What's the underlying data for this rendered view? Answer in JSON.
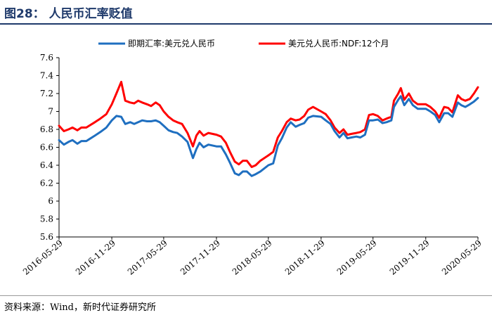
{
  "header": {
    "title": "图28：  人民币汇率贬值"
  },
  "footer": {
    "source": "资料来源：Wind，新时代证券研究所"
  },
  "colors": {
    "title": "#1f3a6b",
    "spot": "#1f6fc0",
    "ndf": "#ff0000"
  },
  "chart_data": {
    "type": "line",
    "title": "",
    "xlabel": "",
    "ylabel": "",
    "ylim": [
      5.6,
      7.6
    ],
    "yticks": [
      5.6,
      5.8,
      6,
      6.2,
      6.4,
      6.6,
      6.8,
      7,
      7.2,
      7.4,
      7.6
    ],
    "ytick_labels": [
      "5.6",
      "5.8",
      "6",
      "6.2",
      "6.4",
      "6.6",
      "6.8",
      "7",
      "7.2",
      "7.4",
      "7.6"
    ],
    "xlim": [
      "2016-05-29",
      "2020-05-29"
    ],
    "xticks": [
      "2016-05-29",
      "2016-11-29",
      "2017-05-29",
      "2017-11-29",
      "2018-05-29",
      "2018-11-29",
      "2019-05-29",
      "2019-11-29",
      "2020-05-29"
    ],
    "legend_position": "top",
    "grid": false,
    "series": [
      {
        "name": "即期汇率:美元兑人民币",
        "color": "#1f6fc0",
        "points": [
          [
            "2016-05-29",
            6.68
          ],
          [
            "2016-06-15",
            6.63
          ],
          [
            "2016-07-01",
            6.66
          ],
          [
            "2016-07-15",
            6.68
          ],
          [
            "2016-08-01",
            6.64
          ],
          [
            "2016-08-15",
            6.67
          ],
          [
            "2016-09-01",
            6.67
          ],
          [
            "2016-10-01",
            6.73
          ],
          [
            "2016-10-20",
            6.77
          ],
          [
            "2016-11-10",
            6.82
          ],
          [
            "2016-11-29",
            6.9
          ],
          [
            "2016-12-15",
            6.95
          ],
          [
            "2017-01-01",
            6.94
          ],
          [
            "2017-01-15",
            6.86
          ],
          [
            "2017-02-01",
            6.88
          ],
          [
            "2017-02-15",
            6.86
          ],
          [
            "2017-03-01",
            6.88
          ],
          [
            "2017-03-15",
            6.9
          ],
          [
            "2017-04-01",
            6.89
          ],
          [
            "2017-04-15",
            6.89
          ],
          [
            "2017-05-01",
            6.9
          ],
          [
            "2017-05-15",
            6.88
          ],
          [
            "2017-05-29",
            6.84
          ],
          [
            "2017-06-15",
            6.79
          ],
          [
            "2017-07-01",
            6.77
          ],
          [
            "2017-07-15",
            6.76
          ],
          [
            "2017-08-01",
            6.72
          ],
          [
            "2017-08-20",
            6.66
          ],
          [
            "2017-09-08",
            6.48
          ],
          [
            "2017-09-20",
            6.58
          ],
          [
            "2017-10-01",
            6.65
          ],
          [
            "2017-10-15",
            6.6
          ],
          [
            "2017-11-01",
            6.63
          ],
          [
            "2017-11-29",
            6.61
          ],
          [
            "2017-12-15",
            6.61
          ],
          [
            "2018-01-01",
            6.52
          ],
          [
            "2018-01-15",
            6.43
          ],
          [
            "2018-02-01",
            6.31
          ],
          [
            "2018-02-15",
            6.29
          ],
          [
            "2018-03-01",
            6.33
          ],
          [
            "2018-03-15",
            6.33
          ],
          [
            "2018-04-01",
            6.28
          ],
          [
            "2018-04-15",
            6.3
          ],
          [
            "2018-05-01",
            6.33
          ],
          [
            "2018-05-29",
            6.4
          ],
          [
            "2018-06-15",
            6.42
          ],
          [
            "2018-07-01",
            6.62
          ],
          [
            "2018-07-15",
            6.7
          ],
          [
            "2018-08-01",
            6.82
          ],
          [
            "2018-08-15",
            6.88
          ],
          [
            "2018-09-01",
            6.83
          ],
          [
            "2018-09-15",
            6.85
          ],
          [
            "2018-10-01",
            6.87
          ],
          [
            "2018-10-15",
            6.93
          ],
          [
            "2018-11-01",
            6.95
          ],
          [
            "2018-11-29",
            6.94
          ],
          [
            "2018-12-15",
            6.9
          ],
          [
            "2019-01-01",
            6.86
          ],
          [
            "2019-01-15",
            6.78
          ],
          [
            "2019-02-01",
            6.71
          ],
          [
            "2019-02-15",
            6.76
          ],
          [
            "2019-03-01",
            6.7
          ],
          [
            "2019-03-15",
            6.71
          ],
          [
            "2019-04-01",
            6.72
          ],
          [
            "2019-04-15",
            6.71
          ],
          [
            "2019-05-01",
            6.74
          ],
          [
            "2019-05-15",
            6.9
          ],
          [
            "2019-05-29",
            6.9
          ],
          [
            "2019-06-15",
            6.91
          ],
          [
            "2019-07-01",
            6.87
          ],
          [
            "2019-07-15",
            6.88
          ],
          [
            "2019-08-01",
            6.9
          ],
          [
            "2019-08-10",
            7.05
          ],
          [
            "2019-08-25",
            7.13
          ],
          [
            "2019-09-03",
            7.17
          ],
          [
            "2019-09-15",
            7.07
          ],
          [
            "2019-10-01",
            7.14
          ],
          [
            "2019-10-15",
            7.07
          ],
          [
            "2019-11-01",
            7.03
          ],
          [
            "2019-11-29",
            7.03
          ],
          [
            "2019-12-15",
            7.0
          ],
          [
            "2020-01-01",
            6.96
          ],
          [
            "2020-01-15",
            6.88
          ],
          [
            "2020-02-01",
            6.98
          ],
          [
            "2020-02-15",
            6.98
          ],
          [
            "2020-03-01",
            6.94
          ],
          [
            "2020-03-20",
            7.1
          ],
          [
            "2020-04-01",
            7.07
          ],
          [
            "2020-04-15",
            7.05
          ],
          [
            "2020-05-01",
            7.08
          ],
          [
            "2020-05-15",
            7.11
          ],
          [
            "2020-05-29",
            7.15
          ]
        ]
      },
      {
        "name": "美元兑人民币:NDF:12个月",
        "color": "#ff0000",
        "points": [
          [
            "2016-05-29",
            6.84
          ],
          [
            "2016-06-15",
            6.78
          ],
          [
            "2016-07-01",
            6.8
          ],
          [
            "2016-07-15",
            6.82
          ],
          [
            "2016-08-01",
            6.79
          ],
          [
            "2016-08-15",
            6.82
          ],
          [
            "2016-09-01",
            6.82
          ],
          [
            "2016-10-01",
            6.88
          ],
          [
            "2016-10-20",
            6.92
          ],
          [
            "2016-11-10",
            6.97
          ],
          [
            "2016-11-29",
            7.08
          ],
          [
            "2016-12-15",
            7.2
          ],
          [
            "2017-01-01",
            7.33
          ],
          [
            "2017-01-15",
            7.12
          ],
          [
            "2017-02-01",
            7.1
          ],
          [
            "2017-02-15",
            7.09
          ],
          [
            "2017-03-01",
            7.12
          ],
          [
            "2017-03-15",
            7.1
          ],
          [
            "2017-04-01",
            7.08
          ],
          [
            "2017-04-15",
            7.06
          ],
          [
            "2017-05-01",
            7.1
          ],
          [
            "2017-05-15",
            7.07
          ],
          [
            "2017-05-29",
            7.0
          ],
          [
            "2017-06-15",
            6.94
          ],
          [
            "2017-07-01",
            6.9
          ],
          [
            "2017-07-15",
            6.88
          ],
          [
            "2017-08-01",
            6.86
          ],
          [
            "2017-08-20",
            6.76
          ],
          [
            "2017-09-08",
            6.61
          ],
          [
            "2017-09-20",
            6.73
          ],
          [
            "2017-10-01",
            6.78
          ],
          [
            "2017-10-15",
            6.73
          ],
          [
            "2017-11-01",
            6.76
          ],
          [
            "2017-11-29",
            6.74
          ],
          [
            "2017-12-15",
            6.72
          ],
          [
            "2018-01-01",
            6.65
          ],
          [
            "2018-01-15",
            6.55
          ],
          [
            "2018-02-01",
            6.44
          ],
          [
            "2018-02-15",
            6.41
          ],
          [
            "2018-03-01",
            6.45
          ],
          [
            "2018-03-15",
            6.45
          ],
          [
            "2018-04-01",
            6.38
          ],
          [
            "2018-04-15",
            6.4
          ],
          [
            "2018-05-01",
            6.45
          ],
          [
            "2018-05-29",
            6.51
          ],
          [
            "2018-06-15",
            6.55
          ],
          [
            "2018-07-01",
            6.71
          ],
          [
            "2018-07-15",
            6.78
          ],
          [
            "2018-08-01",
            6.88
          ],
          [
            "2018-08-15",
            6.92
          ],
          [
            "2018-09-01",
            6.9
          ],
          [
            "2018-09-15",
            6.91
          ],
          [
            "2018-10-01",
            6.95
          ],
          [
            "2018-10-15",
            7.02
          ],
          [
            "2018-11-01",
            7.05
          ],
          [
            "2018-11-29",
            7.0
          ],
          [
            "2018-12-15",
            6.97
          ],
          [
            "2019-01-01",
            6.9
          ],
          [
            "2019-01-15",
            6.82
          ],
          [
            "2019-02-01",
            6.76
          ],
          [
            "2019-02-15",
            6.8
          ],
          [
            "2019-03-01",
            6.74
          ],
          [
            "2019-03-15",
            6.75
          ],
          [
            "2019-04-01",
            6.76
          ],
          [
            "2019-04-15",
            6.77
          ],
          [
            "2019-05-01",
            6.8
          ],
          [
            "2019-05-15",
            6.96
          ],
          [
            "2019-05-29",
            6.97
          ],
          [
            "2019-06-15",
            6.95
          ],
          [
            "2019-07-01",
            6.9
          ],
          [
            "2019-07-15",
            6.92
          ],
          [
            "2019-08-01",
            6.94
          ],
          [
            "2019-08-10",
            7.12
          ],
          [
            "2019-08-25",
            7.2
          ],
          [
            "2019-09-03",
            7.26
          ],
          [
            "2019-09-15",
            7.13
          ],
          [
            "2019-10-01",
            7.2
          ],
          [
            "2019-10-15",
            7.12
          ],
          [
            "2019-11-01",
            7.08
          ],
          [
            "2019-11-29",
            7.08
          ],
          [
            "2019-12-15",
            7.05
          ],
          [
            "2020-01-01",
            7.0
          ],
          [
            "2020-01-15",
            6.93
          ],
          [
            "2020-02-01",
            7.05
          ],
          [
            "2020-02-15",
            7.04
          ],
          [
            "2020-03-01",
            6.99
          ],
          [
            "2020-03-20",
            7.18
          ],
          [
            "2020-04-01",
            7.14
          ],
          [
            "2020-04-15",
            7.12
          ],
          [
            "2020-05-01",
            7.14
          ],
          [
            "2020-05-15",
            7.2
          ],
          [
            "2020-05-29",
            7.27
          ]
        ]
      }
    ]
  }
}
